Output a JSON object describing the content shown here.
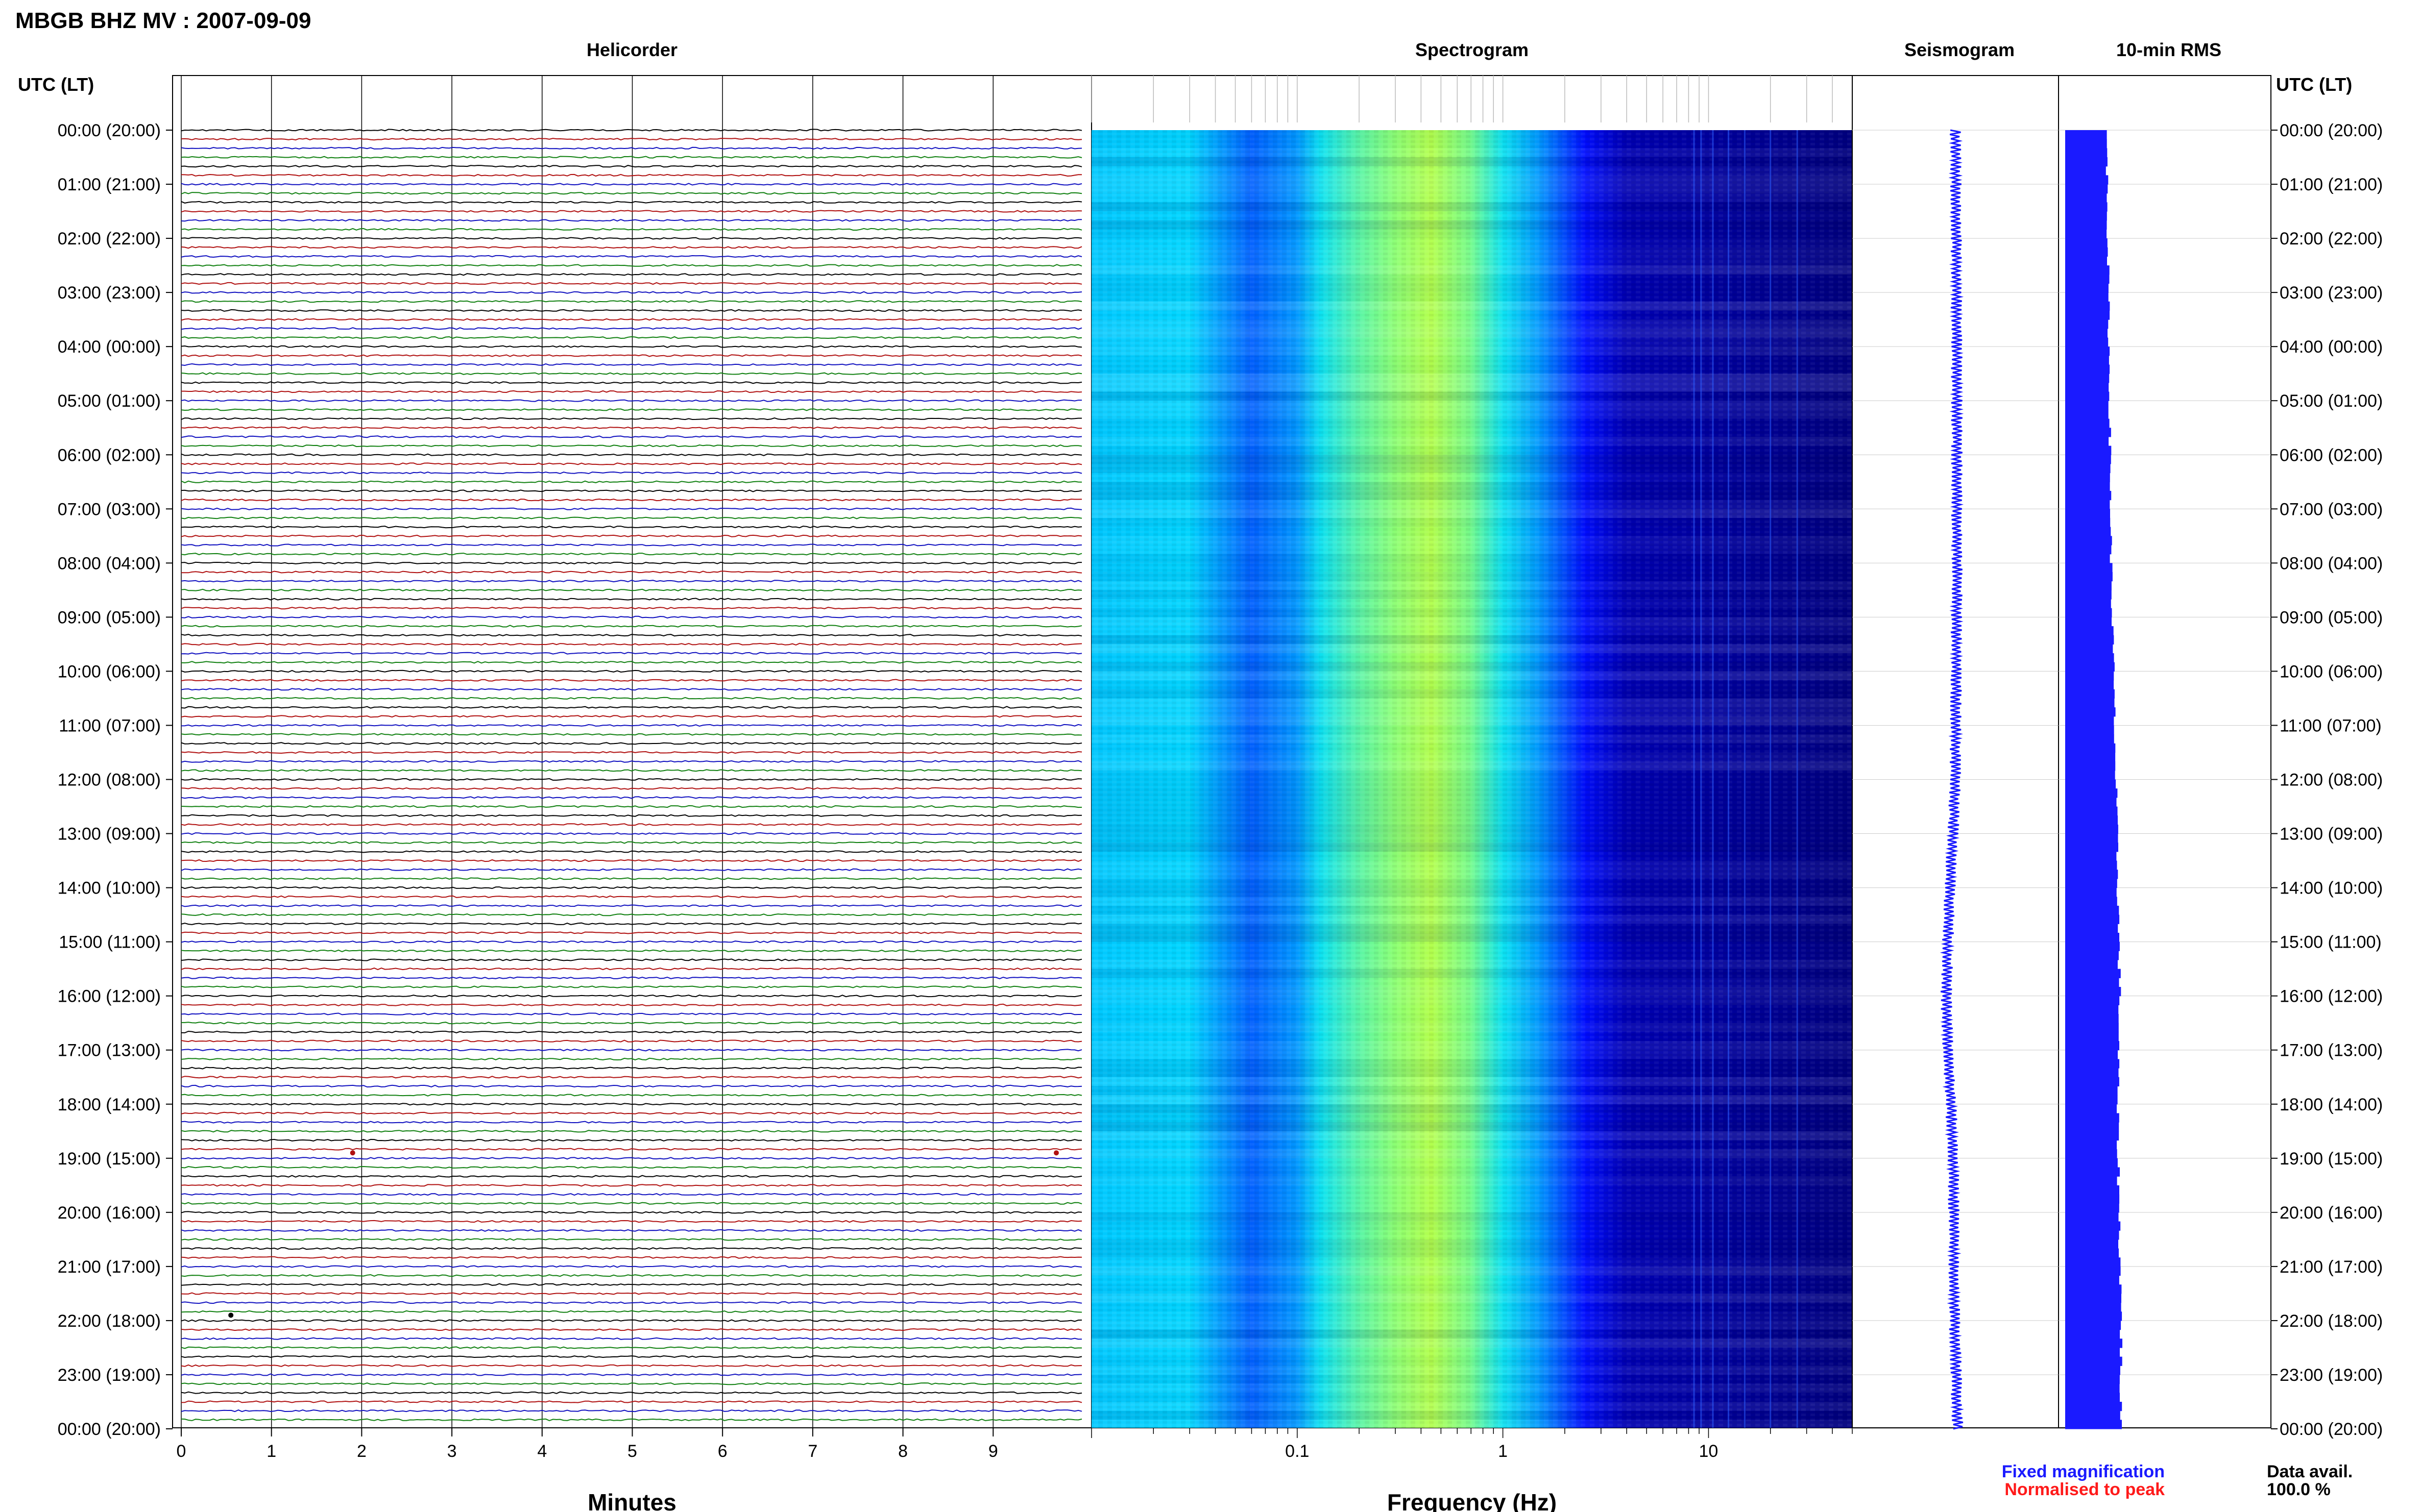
{
  "figure": {
    "title": "MBGB BHZ MV : 2007-09-09"
  },
  "colors": {
    "trace_cycle": [
      "#000000",
      "#b01010",
      "#1010c0",
      "#108010"
    ],
    "seismogram": "#1a1aff",
    "rms": "#1a1aff",
    "fixed_magnification": "#1a1aff",
    "normalised_to_peak": "#ff1a1a",
    "spectrogram_colormap": [
      "#00007f",
      "#0000ff",
      "#0080ff",
      "#00e0ff",
      "#80ff80",
      "#ffff00"
    ]
  },
  "time_axis": {
    "header_left": "UTC (LT)",
    "header_right": "UTC (LT)",
    "labels": [
      "00:00 (20:00)",
      "01:00 (21:00)",
      "02:00 (22:00)",
      "03:00 (23:00)",
      "04:00 (00:00)",
      "05:00 (01:00)",
      "06:00 (02:00)",
      "07:00 (03:00)",
      "08:00 (04:00)",
      "09:00 (05:00)",
      "10:00 (06:00)",
      "11:00 (07:00)",
      "12:00 (08:00)",
      "13:00 (09:00)",
      "14:00 (10:00)",
      "15:00 (11:00)",
      "16:00 (12:00)",
      "17:00 (13:00)",
      "18:00 (14:00)",
      "19:00 (15:00)",
      "20:00 (16:00)",
      "21:00 (17:00)",
      "22:00 (18:00)",
      "23:00 (19:00)",
      "00:00 (20:00)"
    ]
  },
  "chart_data": [
    {
      "type": "line",
      "panel": "helicorder",
      "title": "Helicorder",
      "xlabel": "Minutes",
      "xlim": [
        0,
        10
      ],
      "xticks": [
        0,
        1,
        2,
        3,
        4,
        5,
        6,
        7,
        8,
        9
      ],
      "traces_per_hour": 6,
      "hours": 24,
      "events": [
        {
          "hour": 18.9,
          "minute": 1.9,
          "color_index": 1
        },
        {
          "hour": 18.9,
          "minute": 9.7,
          "color_index": 1
        },
        {
          "hour": 21.9,
          "minute": 0.55,
          "color_index": 0
        }
      ]
    },
    {
      "type": "heatmap",
      "panel": "spectrogram",
      "title": "Spectrogram",
      "xlabel": "Frequency (Hz)",
      "xscale": "log",
      "xlim": [
        0.01,
        50
      ],
      "xticks": [
        0.1,
        1,
        10
      ],
      "xtick_labels": [
        "0.1",
        "1",
        "10"
      ],
      "relative_power_profile": {
        "frequency_hz": [
          0.01,
          0.03,
          0.06,
          0.1,
          0.13,
          0.2,
          0.3,
          0.45,
          0.7,
          1.0,
          1.5,
          2.5,
          4,
          10,
          50
        ],
        "level": [
          0.55,
          0.58,
          0.35,
          0.45,
          0.62,
          0.74,
          0.82,
          0.88,
          0.78,
          0.62,
          0.45,
          0.22,
          0.08,
          0.05,
          0.0
        ]
      }
    },
    {
      "type": "line",
      "panel": "seismogram",
      "title": "Seismogram",
      "hours": [
        0,
        2,
        4,
        6,
        8,
        10,
        12,
        13,
        14,
        15,
        16,
        17,
        18,
        19,
        20,
        21,
        22,
        23,
        24
      ],
      "offset": [
        0.0,
        0.05,
        0.08,
        0.1,
        0.1,
        0.05,
        0.0,
        -0.15,
        -0.35,
        -0.5,
        -0.6,
        -0.5,
        -0.3,
        -0.15,
        -0.1,
        -0.1,
        -0.05,
        0.05,
        0.15
      ]
    },
    {
      "type": "bar",
      "panel": "rms",
      "title": "10-min RMS",
      "orientation": "horizontal",
      "hours": [
        0,
        2,
        4,
        6,
        8,
        10,
        12,
        14,
        16,
        18,
        20,
        22,
        24
      ],
      "rms_relative": [
        0.74,
        0.76,
        0.78,
        0.8,
        0.82,
        0.86,
        0.9,
        0.94,
        0.97,
        0.93,
        0.96,
        1.0,
        0.98
      ]
    }
  ],
  "legend": {
    "fixed_magnification": "Fixed magnification",
    "normalised_to_peak": "Normalised to peak",
    "data_avail_label": "Data avail.",
    "data_avail_value": "100.0 %"
  }
}
